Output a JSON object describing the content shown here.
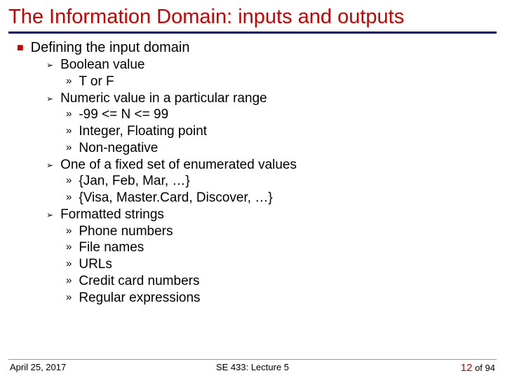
{
  "title": "The Information Domain: inputs and outputs",
  "colors": {
    "title_color": "#cc0000",
    "underline_color": "#000099",
    "bullet1_color": "#cc0000",
    "text_color": "#000000",
    "page_num_color": "#cc0000",
    "background": "#ffffff"
  },
  "typography": {
    "title_fontsize": 29,
    "body_fontsize": 19,
    "footer_fontsize": 13
  },
  "content": {
    "l1": "Defining the input domain",
    "items": [
      {
        "label": "Boolean value",
        "sub": [
          "T or F"
        ]
      },
      {
        "label": "Numeric value in a particular range",
        "sub": [
          "-99 <= N <= 99",
          "Integer, Floating point",
          "Non-negative"
        ]
      },
      {
        "label": "One of a fixed set of enumerated values",
        "sub": [
          "{Jan, Feb, Mar, …}",
          "{Visa, Master.Card, Discover, …}"
        ]
      },
      {
        "label": "Formatted strings",
        "sub": [
          "Phone numbers",
          "File names",
          "URLs",
          "Credit card numbers",
          "Regular expressions"
        ]
      }
    ]
  },
  "footer": {
    "date": "April 25, 2017",
    "course": "SE 433: Lecture 5",
    "page_current": "12",
    "page_total": "of 94"
  }
}
